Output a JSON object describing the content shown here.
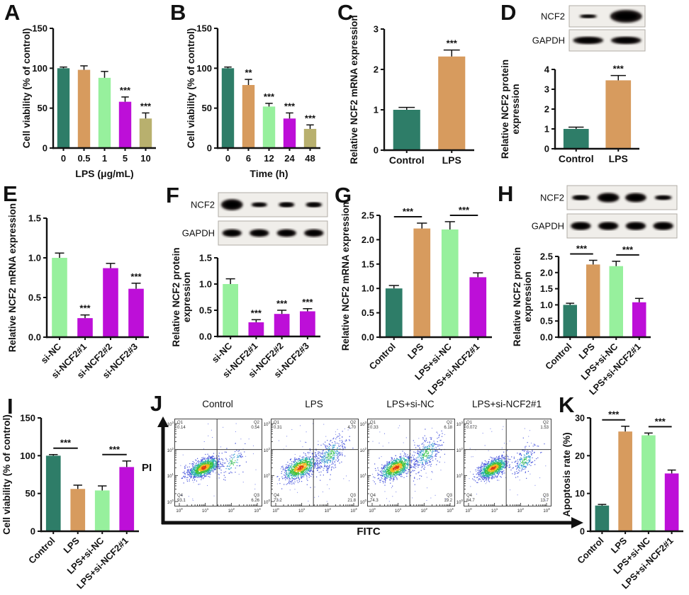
{
  "panels": {
    "A": {
      "letter": "A"
    },
    "B": {
      "letter": "B"
    },
    "C": {
      "letter": "C"
    },
    "D": {
      "letter": "D",
      "blot": {
        "rows": [
          {
            "label": "NCF2",
            "bands": [
              {
                "w": 0.55,
                "h": 0.45
              },
              {
                "w": 1.0,
                "h": 1.5
              }
            ]
          },
          {
            "label": "GAPDH",
            "bands": [
              {
                "w": 0.95,
                "h": 0.9
              },
              {
                "w": 0.95,
                "h": 0.9
              }
            ]
          }
        ]
      }
    },
    "E": {
      "letter": "E"
    },
    "F": {
      "letter": "F",
      "blot": {
        "rows": [
          {
            "label": "NCF2",
            "bands": [
              {
                "w": 0.95,
                "h": 1.15
              },
              {
                "w": 0.7,
                "h": 0.5
              },
              {
                "w": 0.7,
                "h": 0.55
              },
              {
                "w": 0.72,
                "h": 0.55
              }
            ]
          },
          {
            "label": "GAPDH",
            "bands": [
              {
                "w": 0.85,
                "h": 0.8
              },
              {
                "w": 0.85,
                "h": 0.8
              },
              {
                "w": 0.85,
                "h": 0.8
              },
              {
                "w": 0.85,
                "h": 0.8
              }
            ]
          }
        ]
      }
    },
    "G": {
      "letter": "G"
    },
    "H": {
      "letter": "H",
      "blot": {
        "rows": [
          {
            "label": "NCF2",
            "bands": [
              {
                "w": 0.78,
                "h": 0.55
              },
              {
                "w": 0.95,
                "h": 1.0
              },
              {
                "w": 0.92,
                "h": 0.95
              },
              {
                "w": 0.75,
                "h": 0.5
              }
            ]
          },
          {
            "label": "GAPDH",
            "bands": [
              {
                "w": 0.88,
                "h": 0.85
              },
              {
                "w": 0.88,
                "h": 0.85
              },
              {
                "w": 0.88,
                "h": 0.85
              },
              {
                "w": 0.88,
                "h": 0.85
              }
            ]
          }
        ]
      }
    },
    "I": {
      "letter": "I"
    },
    "J": {
      "letter": "J"
    },
    "K": {
      "letter": "K"
    }
  },
  "palette": {
    "teal": "#2e7d68",
    "tan": "#d79b5e",
    "light_green": "#97f09d",
    "magenta": "#bd0fd8",
    "khaki": "#b8b06e"
  },
  "chart_data": {
    "A": {
      "type": "bar",
      "categories": [
        "0",
        "0.5",
        "1",
        "5",
        "10"
      ],
      "values": [
        100,
        98,
        88,
        58,
        37
      ],
      "errors": [
        1.5,
        5,
        8,
        6,
        7
      ],
      "sig": [
        "",
        "",
        "",
        "***",
        "***"
      ],
      "colors": [
        "#2e7d68",
        "#d79b5e",
        "#97f09d",
        "#bd0fd8",
        "#b8b06e"
      ],
      "ylim": [
        0,
        150
      ],
      "yticks": [
        0,
        50,
        100,
        150
      ],
      "ytick_labels": [
        "0",
        "50",
        "100",
        "150"
      ],
      "ylabel": [
        "Cell viability (% of control)"
      ],
      "xlabel": "LPS (μg/mL)",
      "rotate_labels": false,
      "brackets": []
    },
    "B": {
      "type": "bar",
      "categories": [
        "0",
        "6",
        "12",
        "24",
        "48"
      ],
      "values": [
        100,
        79,
        52,
        37,
        24
      ],
      "errors": [
        1.5,
        7,
        4,
        7,
        5
      ],
      "sig": [
        "",
        "**",
        "***",
        "***",
        "***"
      ],
      "colors": [
        "#2e7d68",
        "#d79b5e",
        "#97f09d",
        "#bd0fd8",
        "#b8b06e"
      ],
      "ylim": [
        0,
        150
      ],
      "yticks": [
        0,
        50,
        100,
        150
      ],
      "ytick_labels": [
        "0",
        "50",
        "100",
        "150"
      ],
      "ylabel": [
        "Cell viability (% of control)"
      ],
      "xlabel": "Time (h)",
      "rotate_labels": false,
      "brackets": []
    },
    "C": {
      "type": "bar",
      "categories": [
        "Control",
        "LPS"
      ],
      "values": [
        1.0,
        2.32
      ],
      "errors": [
        0.06,
        0.16
      ],
      "sig": [
        "",
        "***"
      ],
      "colors": [
        "#2e7d68",
        "#d79b5e"
      ],
      "ylim": [
        0,
        3
      ],
      "yticks": [
        0,
        1,
        2,
        3
      ],
      "ytick_labels": [
        "0",
        "1",
        "2",
        "3"
      ],
      "ylabel": [
        "Relative NCF2 mRNA expression"
      ],
      "xlabel": "",
      "rotate_labels": false,
      "brackets": []
    },
    "D": {
      "type": "bar",
      "categories": [
        "Control",
        "LPS"
      ],
      "values": [
        1.0,
        3.45
      ],
      "errors": [
        0.09,
        0.24
      ],
      "sig": [
        "",
        "***"
      ],
      "colors": [
        "#2e7d68",
        "#d79b5e"
      ],
      "ylim": [
        0,
        4
      ],
      "yticks": [
        0,
        1,
        2,
        3,
        4
      ],
      "ytick_labels": [
        "0",
        "1",
        "2",
        "3",
        "4"
      ],
      "ylabel": [
        "Relative NCF2 protein",
        "expression"
      ],
      "xlabel": "",
      "rotate_labels": false,
      "brackets": []
    },
    "E": {
      "type": "bar",
      "categories": [
        "si-NC",
        "si-NCF2#1",
        "si-NCF2#2",
        "si-NCF2#3"
      ],
      "values": [
        1.0,
        0.24,
        0.87,
        0.61
      ],
      "errors": [
        0.06,
        0.04,
        0.06,
        0.07
      ],
      "sig": [
        "",
        "***",
        "",
        "***"
      ],
      "colors": [
        "#97f09d",
        "#bd0fd8",
        "#bd0fd8",
        "#bd0fd8"
      ],
      "ylim": [
        0,
        1.5
      ],
      "yticks": [
        0,
        0.5,
        1,
        1.5
      ],
      "ytick_labels": [
        "0.0",
        "0.5",
        "1.0",
        "1.5"
      ],
      "ylabel": [
        "Relative NCF2 mRNA expression"
      ],
      "xlabel": "",
      "rotate_labels": true,
      "brackets": []
    },
    "F": {
      "type": "bar",
      "categories": [
        "si-NC",
        "si-NCF2#1",
        "si-NCF2#2",
        "si-NCF2#3"
      ],
      "values": [
        1.0,
        0.27,
        0.43,
        0.48
      ],
      "errors": [
        0.1,
        0.05,
        0.07,
        0.05
      ],
      "sig": [
        "",
        "***",
        "***",
        "***"
      ],
      "colors": [
        "#97f09d",
        "#bd0fd8",
        "#bd0fd8",
        "#bd0fd8"
      ],
      "ylim": [
        0,
        1.5
      ],
      "yticks": [
        0,
        0.5,
        1,
        1.5
      ],
      "ytick_labels": [
        "0.0",
        "0.5",
        "1.0",
        "1.5"
      ],
      "ylabel": [
        "Relative NCF2 protein",
        "expression"
      ],
      "xlabel": "",
      "rotate_labels": true,
      "brackets": []
    },
    "G": {
      "type": "bar",
      "categories": [
        "Control",
        "LPS",
        "LPS+si-NC",
        "LPS+si-NCF2#1"
      ],
      "values": [
        1.0,
        2.23,
        2.21,
        1.23
      ],
      "errors": [
        0.06,
        0.11,
        0.16,
        0.09
      ],
      "sig": [
        "",
        "",
        "",
        ""
      ],
      "colors": [
        "#2e7d68",
        "#d79b5e",
        "#97f09d",
        "#bd0fd8"
      ],
      "ylim": [
        0,
        2.5
      ],
      "yticks": [
        0,
        0.5,
        1,
        1.5,
        2,
        2.5
      ],
      "ytick_labels": [
        "0.0",
        "0.5",
        "1.0",
        "1.5",
        "2.0",
        "2.5"
      ],
      "ylabel": [
        "Relative NCF2 mRNA expression"
      ],
      "xlabel": "",
      "rotate_labels": true,
      "brackets": [
        {
          "from": 0,
          "to": 1,
          "label": "***"
        },
        {
          "from": 2,
          "to": 3,
          "label": "***"
        }
      ]
    },
    "H": {
      "type": "bar",
      "categories": [
        "Control",
        "LPS",
        "LPS+si-NC",
        "LPS+si-NCF2#1"
      ],
      "values": [
        1.0,
        2.25,
        2.2,
        1.08
      ],
      "errors": [
        0.05,
        0.13,
        0.15,
        0.12
      ],
      "sig": [
        "",
        "",
        "",
        ""
      ],
      "colors": [
        "#2e7d68",
        "#d79b5e",
        "#97f09d",
        "#bd0fd8"
      ],
      "ylim": [
        0,
        2.5
      ],
      "yticks": [
        0,
        0.5,
        1,
        1.5,
        2,
        2.5
      ],
      "ytick_labels": [
        "0.0",
        "0.5",
        "1.0",
        "1.5",
        "2.0",
        "2.5"
      ],
      "ylabel": [
        "Relative NCF2 protein",
        "expression"
      ],
      "xlabel": "",
      "rotate_labels": true,
      "brackets": [
        {
          "from": 0,
          "to": 1,
          "label": "***"
        },
        {
          "from": 2,
          "to": 3,
          "label": "***"
        }
      ]
    },
    "I": {
      "type": "bar",
      "categories": [
        "Control",
        "LPS",
        "LPS+si-NC",
        "LPS+si-NCF2#1"
      ],
      "values": [
        100,
        56,
        54,
        85
      ],
      "errors": [
        1.5,
        5,
        6,
        8
      ],
      "sig": [
        "",
        "",
        "",
        ""
      ],
      "colors": [
        "#2e7d68",
        "#d79b5e",
        "#97f09d",
        "#bd0fd8"
      ],
      "ylim": [
        0,
        150
      ],
      "yticks": [
        0,
        50,
        100,
        150
      ],
      "ytick_labels": [
        "0",
        "50",
        "100",
        "150"
      ],
      "ylabel": [
        "Cell viability (% of control)"
      ],
      "xlabel": "",
      "rotate_labels": true,
      "brackets": [
        {
          "from": 0,
          "to": 1,
          "label": "***"
        },
        {
          "from": 2,
          "to": 3,
          "label": "***"
        }
      ]
    },
    "K": {
      "type": "bar",
      "categories": [
        "Control",
        "LPS",
        "LPS+si-NC",
        "LPS+si-NCF2#1"
      ],
      "values": [
        6.8,
        26.4,
        25.4,
        15.3
      ],
      "errors": [
        0.3,
        1.4,
        0.6,
        0.9
      ],
      "sig": [
        "",
        "",
        "",
        ""
      ],
      "colors": [
        "#2e7d68",
        "#d79b5e",
        "#97f09d",
        "#bd0fd8"
      ],
      "ylim": [
        0,
        30
      ],
      "yticks": [
        0,
        10,
        20,
        30
      ],
      "ytick_labels": [
        "0",
        "10",
        "20",
        "30"
      ],
      "ylabel": [
        "Apoptosis rate (%)"
      ],
      "xlabel": "",
      "rotate_labels": true,
      "brackets": [
        {
          "from": 0,
          "to": 1,
          "label": "***"
        },
        {
          "from": 2,
          "to": 3,
          "label": "***"
        }
      ]
    },
    "J": {
      "type": "flow-scatter",
      "xlabel": "FITC",
      "ylabel": "PI",
      "log_decades": [
        0,
        3
      ],
      "quadrant_x": 1.45,
      "quadrant_y": 2,
      "plots": [
        {
          "title": "Control",
          "quadrants": {
            "Q1": "0.14",
            "Q2": "0.54",
            "Q3": "6.26",
            "Q4": "93.1"
          },
          "clusters": {
            "main": {
              "cx": 0.95,
              "cy": 1.3,
              "sx": 0.3,
              "sy": 0.2,
              "n": 1150
            },
            "late": {
              "cx": 2.05,
              "cy": 1.5,
              "sx": 0.25,
              "sy": 0.3,
              "n": 95
            }
          }
        },
        {
          "title": "LPS",
          "quadrants": {
            "Q1": "0.31",
            "Q2": "4.70",
            "Q3": "21.8",
            "Q4": "73.2"
          },
          "clusters": {
            "main": {
              "cx": 0.95,
              "cy": 1.3,
              "sx": 0.33,
              "sy": 0.24,
              "n": 900
            },
            "late": {
              "cx": 2.1,
              "cy": 1.8,
              "sx": 0.3,
              "sy": 0.35,
              "n": 340
            }
          }
        },
        {
          "title": "LPS+si-NC",
          "quadrants": {
            "Q1": "0.33",
            "Q2": "6.18",
            "Q3": "19.2",
            "Q4": "74.3"
          },
          "clusters": {
            "main": {
              "cx": 0.92,
              "cy": 1.3,
              "sx": 0.32,
              "sy": 0.23,
              "n": 900
            },
            "late": {
              "cx": 2.1,
              "cy": 1.85,
              "sx": 0.3,
              "sy": 0.35,
              "n": 330
            }
          }
        },
        {
          "title": "LPS+si-NCF2#1",
          "quadrants": {
            "Q1": "0.072",
            "Q2": "1.53",
            "Q3": "13.7",
            "Q4": "84.7"
          },
          "clusters": {
            "main": {
              "cx": 0.95,
              "cy": 1.28,
              "sx": 0.28,
              "sy": 0.2,
              "n": 1050
            },
            "late": {
              "cx": 2.15,
              "cy": 1.55,
              "sx": 0.22,
              "sy": 0.28,
              "n": 200
            }
          }
        }
      ]
    }
  }
}
